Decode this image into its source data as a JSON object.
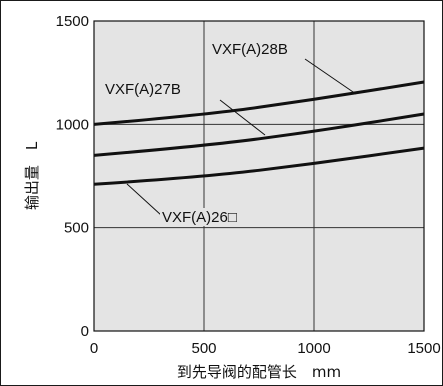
{
  "chart_data": {
    "type": "line",
    "xlabel": "到先导阀的配管长　mm",
    "ylabel": "输出量　L",
    "xlim": [
      0,
      1500
    ],
    "ylim": [
      0,
      1500
    ],
    "xticks": [
      "0",
      "500",
      "1000",
      "1500"
    ],
    "yticks": [
      "0",
      "500",
      "1000",
      "1500"
    ],
    "grid": true,
    "background": "#e4e4e4",
    "line_color": "#111111",
    "series": [
      {
        "name": "VXF(A)28B",
        "x": [
          0,
          500,
          1000,
          1500
        ],
        "y": [
          1000,
          1045,
          1120,
          1205
        ]
      },
      {
        "name": "VXF(A)27B",
        "x": [
          0,
          500,
          1000,
          1500
        ],
        "y": [
          850,
          895,
          965,
          1050
        ]
      },
      {
        "name": "VXF(A)26□",
        "x": [
          0,
          500,
          1000,
          1500
        ],
        "y": [
          710,
          745,
          810,
          885
        ]
      }
    ]
  }
}
